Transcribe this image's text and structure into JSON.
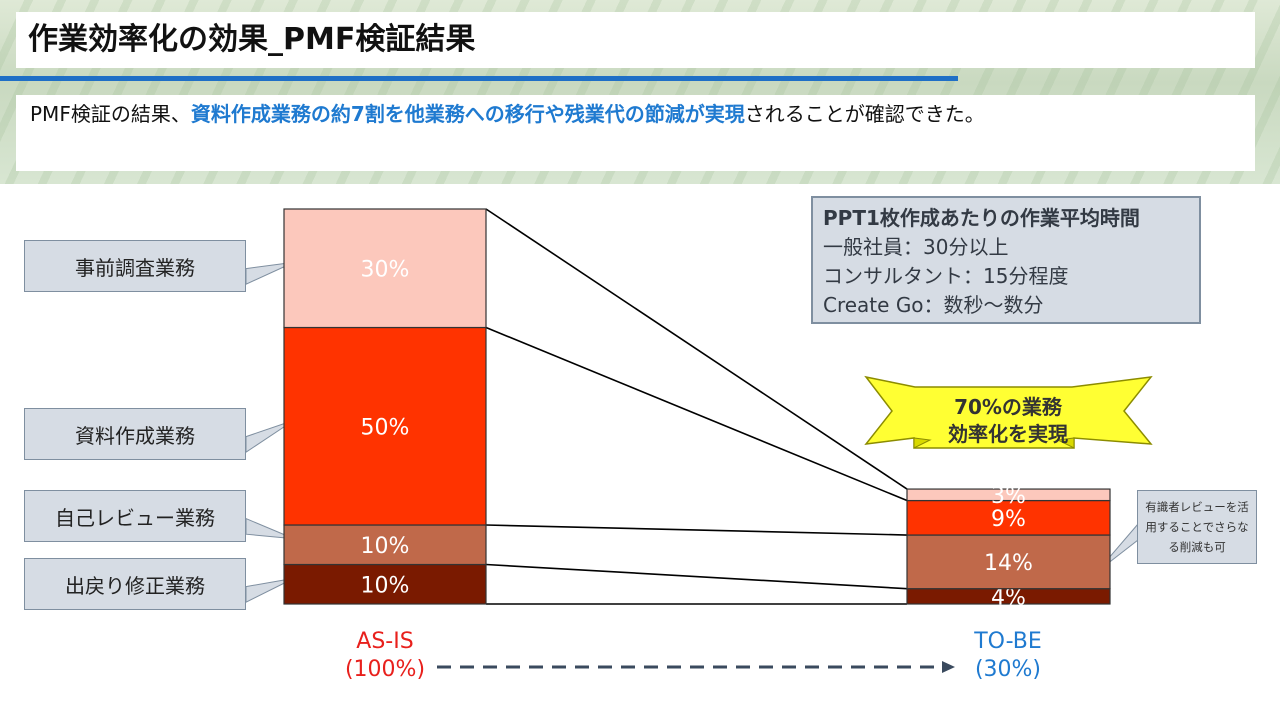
{
  "title": "作業効率化の効果_PMF検証結果",
  "summary": {
    "prefix": "PMF検証の結果、",
    "highlight": "資料作成業務の約7割を他業務への移行や残業代の節減が実現",
    "suffix": "されることが確認できた。"
  },
  "info_box": {
    "heading": "PPT1枚作成あたりの作業平均時間",
    "lines": [
      "一般社員：30分以上",
      "コンサルタント：15分程度",
      "Create Go：数秒～数分"
    ]
  },
  "banner": {
    "line1": "70%の業務",
    "line2": "効率化を実現"
  },
  "note": "有識者レビューを活用することでさらなる削減も可",
  "colors": {
    "accent_blue": "#1f7ad0",
    "as_is_label": "#e8201c",
    "to_be_label": "#1f7ad0",
    "banner_fill": "#ffff33"
  },
  "chart_data": {
    "type": "bar",
    "stacked": true,
    "categories": [
      "AS-IS",
      "TO-BE"
    ],
    "category_sublabels": [
      "(100%)",
      "(30%)"
    ],
    "series": [
      {
        "name": "出戻り修正業務",
        "values": [
          10,
          4
        ],
        "labels": [
          "10%",
          "4%"
        ],
        "color": "#7a1a00"
      },
      {
        "name": "自己レビュー業務",
        "values": [
          10,
          14
        ],
        "labels": [
          "10%",
          "14%"
        ],
        "color": "#c0694a"
      },
      {
        "name": "資料作成業務",
        "values": [
          50,
          9
        ],
        "labels": [
          "50%",
          "9%"
        ],
        "color": "#ff3300"
      },
      {
        "name": "事前調査業務",
        "values": [
          30,
          3
        ],
        "labels": [
          "30%",
          "3%"
        ],
        "color": "#fcc8bc"
      }
    ],
    "totals": [
      100,
      30
    ],
    "legend": "callouts-left"
  }
}
